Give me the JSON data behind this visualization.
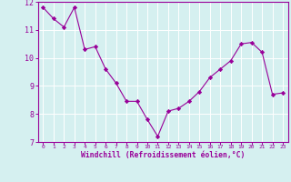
{
  "x": [
    0,
    1,
    2,
    3,
    4,
    5,
    6,
    7,
    8,
    9,
    10,
    11,
    12,
    13,
    14,
    15,
    16,
    17,
    18,
    19,
    20,
    21,
    22,
    23
  ],
  "y": [
    11.8,
    11.4,
    11.1,
    11.8,
    10.3,
    10.4,
    9.6,
    9.1,
    8.45,
    8.45,
    7.8,
    7.2,
    8.1,
    8.2,
    8.45,
    8.8,
    9.3,
    9.6,
    9.9,
    10.5,
    10.55,
    10.2,
    8.7,
    8.75
  ],
  "line_color": "#990099",
  "marker": "D",
  "marker_size": 2.2,
  "bg_color": "#d5f0f0",
  "grid_color": "#ffffff",
  "xlabel": "Windchill (Refroidissement éolien,°C)",
  "xlabel_color": "#990099",
  "tick_color": "#990099",
  "ylim": [
    7,
    12
  ],
  "xlim": [
    -0.5,
    23.5
  ],
  "yticks": [
    7,
    8,
    9,
    10,
    11,
    12
  ],
  "xticks": [
    0,
    1,
    2,
    3,
    4,
    5,
    6,
    7,
    8,
    9,
    10,
    11,
    12,
    13,
    14,
    15,
    16,
    17,
    18,
    19,
    20,
    21,
    22,
    23
  ]
}
